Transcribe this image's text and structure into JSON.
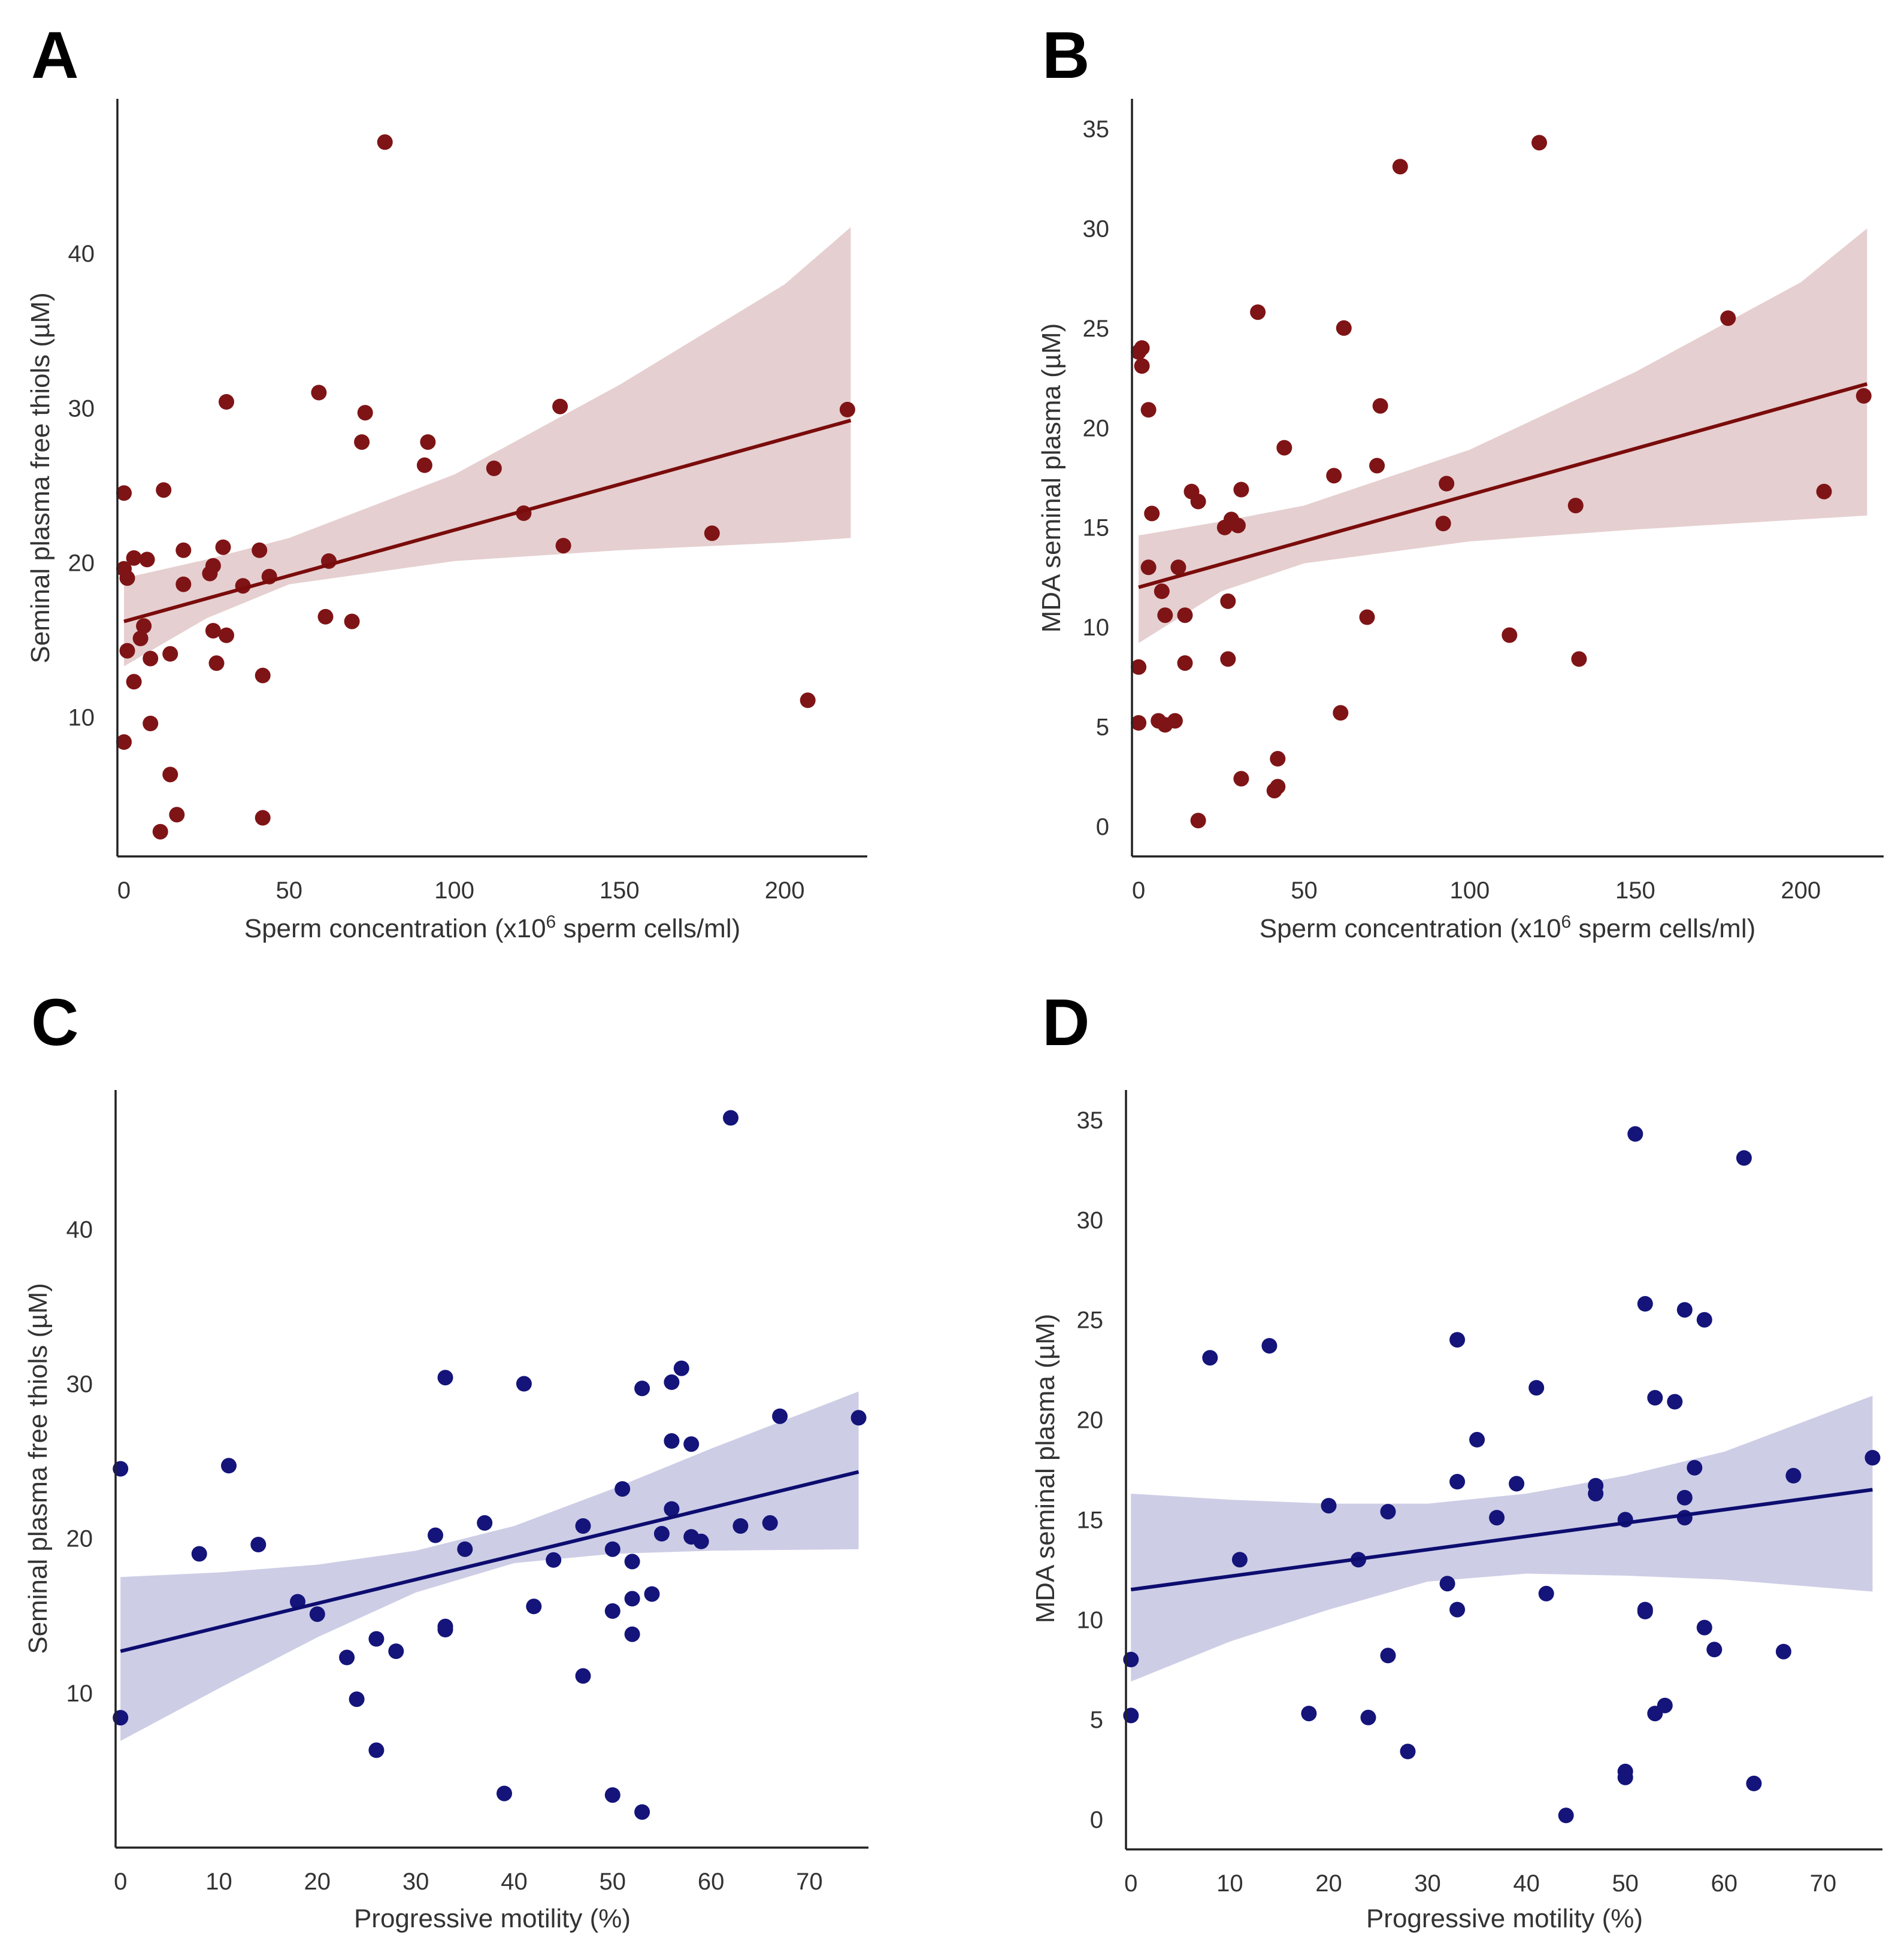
{
  "chart_data": [
    {
      "panel_label": "A",
      "type": "scatter",
      "title": "",
      "xlabel_main": "Sperm concentration (x10",
      "xlabel_sup": "6",
      "xlabel_rest": " sperm cells/ml)",
      "ylabel": "Seminal plasma free thiols (µM)",
      "xlim": [
        -2,
        225
      ],
      "ylim": [
        1,
        50
      ],
      "xticks": [
        0,
        50,
        100,
        150,
        200
      ],
      "yticks": [
        10,
        20,
        30,
        40
      ],
      "grid": false,
      "point_color": "#7f1416",
      "line_color": "#7a0c0c",
      "band_color": "#e6cfd0",
      "regression": {
        "x": [
          0,
          220
        ],
        "y": [
          16.2,
          29.2
        ]
      },
      "ci_band": {
        "x": [
          0,
          25,
          50,
          100,
          150,
          200,
          220
        ],
        "lower": [
          13.3,
          16.4,
          18.6,
          20.1,
          20.8,
          21.3,
          21.6
        ],
        "upper": [
          19.0,
          20.2,
          21.6,
          25.7,
          31.5,
          38.0,
          41.7
        ]
      },
      "points": [
        [
          0,
          24.5
        ],
        [
          0,
          19.6
        ],
        [
          1,
          19.0
        ],
        [
          1,
          14.3
        ],
        [
          0,
          8.4
        ],
        [
          3,
          20.3
        ],
        [
          3,
          12.3
        ],
        [
          5,
          15.1
        ],
        [
          6,
          15.9
        ],
        [
          7,
          20.2
        ],
        [
          8,
          13.8
        ],
        [
          8,
          9.6
        ],
        [
          11,
          2.6
        ],
        [
          12,
          24.7
        ],
        [
          14,
          14.1
        ],
        [
          14,
          6.3
        ],
        [
          16,
          3.7
        ],
        [
          18,
          20.8
        ],
        [
          18,
          18.6
        ],
        [
          26,
          19.3
        ],
        [
          27,
          19.8
        ],
        [
          27,
          15.6
        ],
        [
          28,
          13.5
        ],
        [
          30,
          21.0
        ],
        [
          31,
          30.4
        ],
        [
          31,
          15.3
        ],
        [
          36,
          18.5
        ],
        [
          41,
          20.8
        ],
        [
          42,
          12.7
        ],
        [
          42,
          3.5
        ],
        [
          44,
          19.1
        ],
        [
          59,
          31.0
        ],
        [
          61,
          16.5
        ],
        [
          62,
          20.1
        ],
        [
          69,
          16.2
        ],
        [
          72,
          27.8
        ],
        [
          73,
          29.7
        ],
        [
          79,
          47.2
        ],
        [
          91,
          26.3
        ],
        [
          92,
          27.8
        ],
        [
          112,
          26.1
        ],
        [
          121,
          23.2
        ],
        [
          132,
          30.1
        ],
        [
          133,
          21.1
        ],
        [
          178,
          21.9
        ],
        [
          207,
          11.1
        ],
        [
          219,
          29.9
        ]
      ]
    },
    {
      "panel_label": "B",
      "type": "scatter",
      "title": "",
      "xlabel_main": "Sperm concentration (x10",
      "xlabel_sup": "6",
      "xlabel_rest": " sperm cells/ml)",
      "ylabel": "MDA seminal plasma (µM)",
      "xlim": [
        -2,
        225
      ],
      "ylim": [
        -1.5,
        36.5
      ],
      "xticks": [
        0,
        50,
        100,
        150,
        200
      ],
      "yticks": [
        0,
        5,
        10,
        15,
        20,
        25,
        30,
        35
      ],
      "grid": false,
      "point_color": "#7f1416",
      "line_color": "#7a0c0c",
      "band_color": "#e6cfd0",
      "regression": {
        "x": [
          0,
          220
        ],
        "y": [
          12.0,
          22.2
        ]
      },
      "ci_band": {
        "x": [
          0,
          25,
          50,
          100,
          150,
          200,
          220
        ],
        "lower": [
          9.2,
          11.8,
          13.2,
          14.3,
          14.9,
          15.4,
          15.6
        ],
        "upper": [
          14.6,
          15.3,
          16.1,
          18.9,
          22.8,
          27.3,
          30.0
        ]
      },
      "points": [
        [
          0,
          23.8
        ],
        [
          1,
          24.0
        ],
        [
          1,
          23.1
        ],
        [
          0,
          8.0
        ],
        [
          0,
          5.2
        ],
        [
          3,
          20.9
        ],
        [
          3,
          13.0
        ],
        [
          4,
          15.7
        ],
        [
          6,
          5.3
        ],
        [
          7,
          11.8
        ],
        [
          8,
          10.6
        ],
        [
          8,
          5.1
        ],
        [
          11,
          5.3
        ],
        [
          12,
          13.0
        ],
        [
          14,
          10.6
        ],
        [
          14,
          8.2
        ],
        [
          16,
          16.8
        ],
        [
          18,
          16.3
        ],
        [
          18,
          0.3
        ],
        [
          26,
          15.0
        ],
        [
          27,
          11.3
        ],
        [
          27,
          8.4
        ],
        [
          28,
          15.4
        ],
        [
          30,
          15.1
        ],
        [
          31,
          16.9
        ],
        [
          31,
          2.4
        ],
        [
          36,
          25.8
        ],
        [
          41,
          1.8
        ],
        [
          42,
          3.4
        ],
        [
          42,
          2.0
        ],
        [
          44,
          19.0
        ],
        [
          59,
          17.6
        ],
        [
          61,
          5.7
        ],
        [
          62,
          25.0
        ],
        [
          69,
          10.5
        ],
        [
          72,
          18.1
        ],
        [
          73,
          21.1
        ],
        [
          79,
          33.1
        ],
        [
          92,
          15.2
        ],
        [
          93,
          17.2
        ],
        [
          112,
          9.6
        ],
        [
          121,
          34.3
        ],
        [
          132,
          16.1
        ],
        [
          133,
          8.4
        ],
        [
          178,
          25.5
        ],
        [
          207,
          16.8
        ],
        [
          219,
          21.6
        ]
      ]
    },
    {
      "panel_label": "C",
      "type": "scatter",
      "title": "",
      "xlabel_main": "Progressive motility (%)",
      "xlabel_sup": "",
      "xlabel_rest": "",
      "ylabel": "Seminal plasma free thiols (µM)",
      "xlim": [
        -0.5,
        76
      ],
      "ylim": [
        0,
        49
      ],
      "xticks": [
        0,
        10,
        20,
        30,
        40,
        50,
        60,
        70
      ],
      "yticks": [
        10,
        20,
        30,
        40
      ],
      "grid": false,
      "point_color": "#14147a",
      "line_color": "#0d0d70",
      "band_color": "#cdcde6",
      "regression": {
        "x": [
          0,
          75
        ],
        "y": [
          12.7,
          24.3
        ]
      },
      "ci_band": {
        "x": [
          0,
          10,
          20,
          30,
          40,
          50,
          60,
          75
        ],
        "lower": [
          6.9,
          10.3,
          13.6,
          16.5,
          18.4,
          19.0,
          19.2,
          19.3
        ],
        "upper": [
          17.5,
          17.8,
          18.3,
          19.2,
          20.8,
          23.2,
          25.8,
          29.5
        ]
      },
      "points": [
        [
          0,
          24.5
        ],
        [
          0,
          8.4
        ],
        [
          8,
          19.0
        ],
        [
          11,
          24.7
        ],
        [
          14,
          19.6
        ],
        [
          18,
          15.9
        ],
        [
          20,
          15.1
        ],
        [
          23,
          12.3
        ],
        [
          24,
          9.6
        ],
        [
          26,
          13.5
        ],
        [
          26,
          6.3
        ],
        [
          28,
          12.7
        ],
        [
          32,
          20.2
        ],
        [
          33,
          30.4
        ],
        [
          33,
          14.3
        ],
        [
          33,
          14.1
        ],
        [
          35,
          19.3
        ],
        [
          37,
          21.0
        ],
        [
          39,
          3.5
        ],
        [
          41,
          30.0
        ],
        [
          42,
          15.6
        ],
        [
          44,
          18.6
        ],
        [
          47,
          20.8
        ],
        [
          47,
          11.1
        ],
        [
          50,
          19.3
        ],
        [
          50,
          15.3
        ],
        [
          50,
          3.4
        ],
        [
          51,
          23.2
        ],
        [
          52,
          18.5
        ],
        [
          52,
          16.1
        ],
        [
          52,
          13.8
        ],
        [
          53,
          29.7
        ],
        [
          53,
          2.3
        ],
        [
          54,
          16.4
        ],
        [
          55,
          20.3
        ],
        [
          56,
          30.1
        ],
        [
          56,
          26.3
        ],
        [
          56,
          21.9
        ],
        [
          57,
          31.0
        ],
        [
          58,
          26.1
        ],
        [
          58,
          20.1
        ],
        [
          59,
          19.8
        ],
        [
          62,
          47.2
        ],
        [
          63,
          20.8
        ],
        [
          66,
          21.0
        ],
        [
          67,
          27.9
        ],
        [
          75,
          27.8
        ]
      ]
    },
    {
      "panel_label": "D",
      "type": "scatter",
      "title": "",
      "xlabel_main": "Progressive motility (%)",
      "xlabel_sup": "",
      "xlabel_rest": "",
      "ylabel": "MDA seminal plasma (µM)",
      "xlim": [
        -0.5,
        76
      ],
      "ylim": [
        -1.5,
        36.5
      ],
      "xticks": [
        0,
        10,
        20,
        30,
        40,
        50,
        60,
        70
      ],
      "yticks": [
        0,
        5,
        10,
        15,
        20,
        25,
        30,
        35
      ],
      "grid": false,
      "point_color": "#14147a",
      "line_color": "#0d0d70",
      "band_color": "#cdcde6",
      "regression": {
        "x": [
          0,
          75
        ],
        "y": [
          11.5,
          16.5
        ]
      },
      "ci_band": {
        "x": [
          0,
          10,
          20,
          30,
          40,
          50,
          60,
          75
        ],
        "lower": [
          6.9,
          8.9,
          10.5,
          11.9,
          12.3,
          12.2,
          12.0,
          11.4
        ],
        "upper": [
          16.3,
          16.0,
          15.8,
          15.8,
          16.3,
          17.2,
          18.4,
          21.2
        ]
      },
      "points": [
        [
          0,
          8.0
        ],
        [
          0,
          5.2
        ],
        [
          8,
          23.1
        ],
        [
          11,
          13.0
        ],
        [
          14,
          23.7
        ],
        [
          18,
          5.3
        ],
        [
          20,
          15.7
        ],
        [
          23,
          13.0
        ],
        [
          24,
          5.1
        ],
        [
          26,
          15.4
        ],
        [
          26,
          8.2
        ],
        [
          28,
          3.4
        ],
        [
          32,
          11.8
        ],
        [
          33,
          24.0
        ],
        [
          33,
          16.9
        ],
        [
          33,
          10.5
        ],
        [
          35,
          19.0
        ],
        [
          37,
          15.1
        ],
        [
          39,
          16.8
        ],
        [
          41,
          21.6
        ],
        [
          42,
          11.3
        ],
        [
          44,
          0.2
        ],
        [
          47,
          16.7
        ],
        [
          47,
          16.3
        ],
        [
          50,
          15.0
        ],
        [
          50,
          2.4
        ],
        [
          50,
          2.1
        ],
        [
          51,
          34.3
        ],
        [
          52,
          25.8
        ],
        [
          52,
          10.5
        ],
        [
          52,
          10.4
        ],
        [
          53,
          21.1
        ],
        [
          53,
          5.3
        ],
        [
          54,
          5.7
        ],
        [
          55,
          20.9
        ],
        [
          56,
          25.5
        ],
        [
          56,
          16.1
        ],
        [
          56,
          15.1
        ],
        [
          57,
          17.6
        ],
        [
          58,
          25.0
        ],
        [
          58,
          9.6
        ],
        [
          59,
          8.5
        ],
        [
          62,
          33.1
        ],
        [
          63,
          1.8
        ],
        [
          66,
          8.4
        ],
        [
          67,
          17.2
        ],
        [
          75,
          18.1
        ]
      ]
    }
  ]
}
